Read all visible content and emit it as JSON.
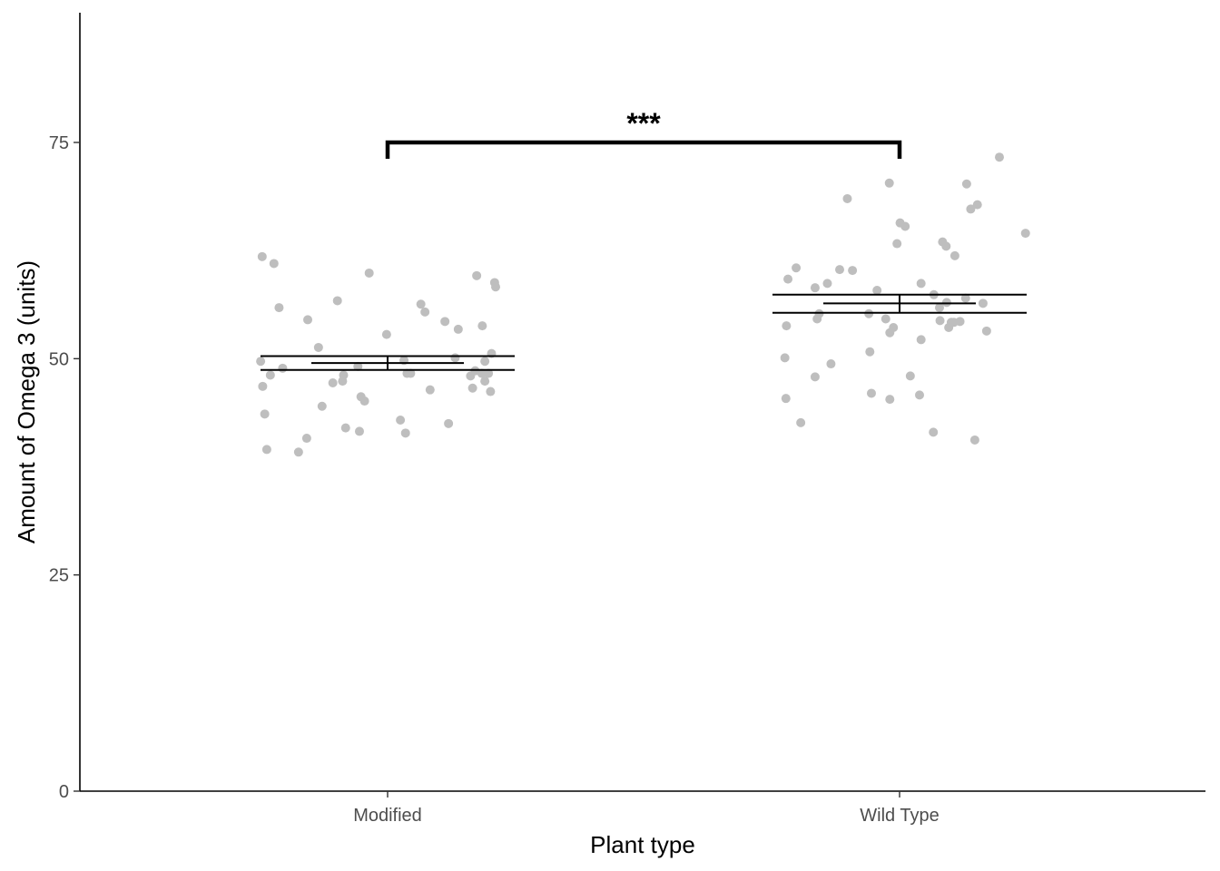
{
  "chart_data": {
    "type": "scatter",
    "xlabel": "Plant type",
    "ylabel": "Amount of Omega 3 (units)",
    "categories": [
      "Modified",
      "Wild Type"
    ],
    "ylim": [
      0,
      90
    ],
    "yticks": [
      0,
      25,
      50,
      75
    ],
    "grid": false,
    "series": [
      {
        "category": "Modified",
        "mean": 49.5,
        "se": [
          48.7,
          50.3
        ],
        "sd_band": [
          48.7,
          50.3
        ],
        "points": [
          {
            "x": -0.245,
            "y": 61.8
          },
          {
            "x": -0.222,
            "y": 61.0
          },
          {
            "x": -0.212,
            "y": 55.9
          },
          {
            "x": -0.156,
            "y": 54.5
          },
          {
            "x": -0.098,
            "y": 56.7
          },
          {
            "x": -0.036,
            "y": 59.9
          },
          {
            "x": -0.002,
            "y": 52.8
          },
          {
            "x": 0.065,
            "y": 56.3
          },
          {
            "x": 0.073,
            "y": 55.4
          },
          {
            "x": 0.112,
            "y": 54.3
          },
          {
            "x": 0.138,
            "y": 53.4
          },
          {
            "x": 0.174,
            "y": 59.6
          },
          {
            "x": 0.209,
            "y": 58.8
          },
          {
            "x": 0.211,
            "y": 58.3
          },
          {
            "x": 0.185,
            "y": 53.8
          },
          {
            "x": -0.248,
            "y": 49.7
          },
          {
            "x": -0.244,
            "y": 46.8
          },
          {
            "x": -0.229,
            "y": 48.1
          },
          {
            "x": -0.205,
            "y": 48.9
          },
          {
            "x": -0.135,
            "y": 51.3
          },
          {
            "x": -0.107,
            "y": 47.2
          },
          {
            "x": -0.088,
            "y": 47.4
          },
          {
            "x": -0.086,
            "y": 48.1
          },
          {
            "x": -0.058,
            "y": 49.1
          },
          {
            "x": -0.052,
            "y": 45.6
          },
          {
            "x": -0.045,
            "y": 45.1
          },
          {
            "x": 0.032,
            "y": 49.8
          },
          {
            "x": 0.038,
            "y": 48.3
          },
          {
            "x": 0.045,
            "y": 48.3
          },
          {
            "x": 0.083,
            "y": 46.4
          },
          {
            "x": 0.132,
            "y": 50.1
          },
          {
            "x": 0.162,
            "y": 48.0
          },
          {
            "x": 0.166,
            "y": 46.6
          },
          {
            "x": 0.171,
            "y": 48.6
          },
          {
            "x": 0.184,
            "y": 48.3
          },
          {
            "x": 0.19,
            "y": 49.7
          },
          {
            "x": 0.19,
            "y": 47.4
          },
          {
            "x": 0.197,
            "y": 48.3
          },
          {
            "x": 0.201,
            "y": 46.2
          },
          {
            "x": 0.203,
            "y": 50.6
          },
          {
            "x": -0.24,
            "y": 43.6
          },
          {
            "x": -0.236,
            "y": 39.5
          },
          {
            "x": -0.174,
            "y": 39.2
          },
          {
            "x": -0.158,
            "y": 40.8
          },
          {
            "x": -0.128,
            "y": 44.5
          },
          {
            "x": -0.082,
            "y": 42.0
          },
          {
            "x": -0.055,
            "y": 41.6
          },
          {
            "x": 0.025,
            "y": 42.9
          },
          {
            "x": 0.035,
            "y": 41.4
          },
          {
            "x": 0.119,
            "y": 42.5
          }
        ]
      },
      {
        "category": "Wild Type",
        "mean": 56.4,
        "se": [
          55.4,
          57.4
        ],
        "sd_band": [
          55.3,
          57.4
        ],
        "points": [
          {
            "x": 0.195,
            "y": 73.3
          },
          {
            "x": -0.02,
            "y": 70.3
          },
          {
            "x": 0.131,
            "y": 70.2
          },
          {
            "x": -0.102,
            "y": 68.5
          },
          {
            "x": 0.152,
            "y": 67.8
          },
          {
            "x": 0.139,
            "y": 67.3
          },
          {
            "x": 0.001,
            "y": 65.7
          },
          {
            "x": 0.011,
            "y": 65.3
          },
          {
            "x": 0.246,
            "y": 64.5
          },
          {
            "x": 0.084,
            "y": 63.5
          },
          {
            "x": 0.091,
            "y": 63.0
          },
          {
            "x": -0.005,
            "y": 63.3
          },
          {
            "x": 0.108,
            "y": 61.9
          },
          {
            "x": -0.202,
            "y": 60.5
          },
          {
            "x": -0.218,
            "y": 59.2
          },
          {
            "x": -0.117,
            "y": 60.3
          },
          {
            "x": -0.092,
            "y": 60.2
          },
          {
            "x": -0.165,
            "y": 58.2
          },
          {
            "x": -0.141,
            "y": 58.7
          },
          {
            "x": -0.044,
            "y": 57.9
          },
          {
            "x": 0.042,
            "y": 58.7
          },
          {
            "x": 0.067,
            "y": 57.4
          },
          {
            "x": 0.092,
            "y": 56.5
          },
          {
            "x": 0.129,
            "y": 57.0
          },
          {
            "x": 0.163,
            "y": 56.4
          },
          {
            "x": -0.157,
            "y": 55.2
          },
          {
            "x": -0.06,
            "y": 55.2
          },
          {
            "x": -0.027,
            "y": 54.6
          },
          {
            "x": 0.078,
            "y": 55.9
          },
          {
            "x": 0.079,
            "y": 54.4
          },
          {
            "x": 0.101,
            "y": 54.2
          },
          {
            "x": 0.106,
            "y": 54.2
          },
          {
            "x": 0.118,
            "y": 54.3
          },
          {
            "x": -0.221,
            "y": 53.8
          },
          {
            "x": -0.161,
            "y": 54.6
          },
          {
            "x": -0.012,
            "y": 53.6
          },
          {
            "x": -0.019,
            "y": 53.0
          },
          {
            "x": 0.042,
            "y": 52.2
          },
          {
            "x": 0.096,
            "y": 53.6
          },
          {
            "x": 0.17,
            "y": 53.2
          },
          {
            "x": -0.224,
            "y": 50.1
          },
          {
            "x": -0.058,
            "y": 50.8
          },
          {
            "x": -0.134,
            "y": 49.4
          },
          {
            "x": -0.165,
            "y": 47.9
          },
          {
            "x": 0.021,
            "y": 48.0
          },
          {
            "x": -0.222,
            "y": 45.4
          },
          {
            "x": -0.055,
            "y": 46.0
          },
          {
            "x": -0.019,
            "y": 45.3
          },
          {
            "x": 0.039,
            "y": 45.8
          },
          {
            "x": -0.193,
            "y": 42.6
          },
          {
            "x": 0.066,
            "y": 41.5
          },
          {
            "x": 0.147,
            "y": 40.6
          }
        ]
      }
    ],
    "annotations": [
      {
        "text": "***",
        "from": "Modified",
        "to": "Wild Type",
        "y": 75
      }
    ],
    "colors": {
      "points": "#bebebe",
      "lines": "#000000",
      "axis": "#000000",
      "tick_label": "#4d4d4d"
    }
  }
}
